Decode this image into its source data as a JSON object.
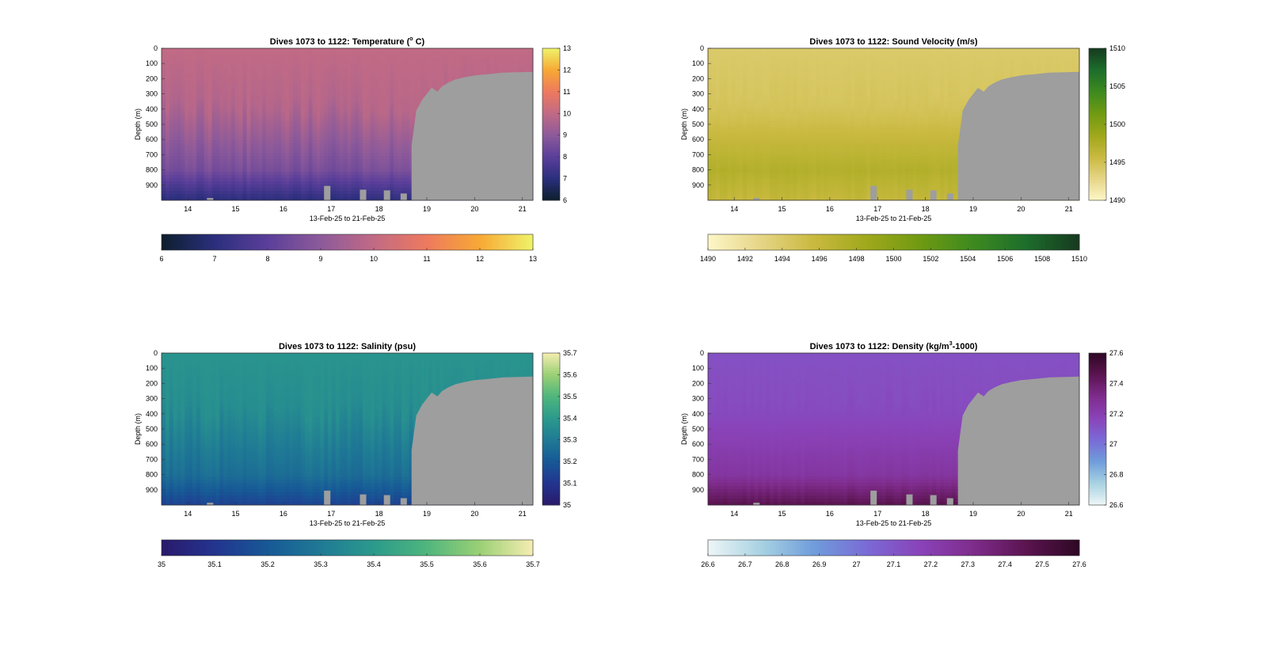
{
  "x_ticks": [
    "14",
    "15",
    "16",
    "17",
    "18",
    "19",
    "20",
    "21"
  ],
  "x_range": [
    13.45,
    21.22
  ],
  "depth_ticks": [
    "0",
    "100",
    "200",
    "300",
    "400",
    "500",
    "600",
    "700",
    "800",
    "900"
  ],
  "depth_range": [
    0,
    1000
  ],
  "xlabel": "13-Feb-25 to 21-Feb-25",
  "ylabel": "Depth (m)",
  "no_data_color": "#9e9e9e",
  "chart_data": [
    {
      "type": "heatmap",
      "title_text": "Dives 1073 to 1122: Temperature (",
      "title_sup": "o",
      "title_after": " C)",
      "variable": "temperature",
      "clim": [
        6,
        13
      ],
      "surface": 10.0,
      "deep": 8.0,
      "bottom": 7.0,
      "colormap": [
        "#0d1f2d",
        "#2b2f7d",
        "#5b3f9a",
        "#8d5a9a",
        "#c16a85",
        "#ee7a5e",
        "#f7a935",
        "#eff36a"
      ],
      "colorbar_ticks": [
        "6",
        "7",
        "8",
        "9",
        "10",
        "11",
        "12",
        "13"
      ],
      "hcolorbar_ticks": [
        "6",
        "7",
        "8",
        "9",
        "10",
        "11",
        "12",
        "13"
      ]
    },
    {
      "type": "heatmap",
      "title_text": "Dives 1073 to 1122: Sound Velocity (m/s)",
      "title_sup": "",
      "title_after": "",
      "variable": "sound_velocity",
      "clim": [
        1490,
        1510
      ],
      "surface": 1494.0,
      "deep": 1498.5,
      "bottom": 1496.0,
      "colormap": [
        "#fdf7c8",
        "#e6d586",
        "#c9b93f",
        "#9fa81b",
        "#6f9a12",
        "#3d8a1f",
        "#1d6d2c",
        "#163a1f"
      ],
      "colorbar_ticks": [
        "1490",
        "1495",
        "1500",
        "1505",
        "1510"
      ],
      "hcolorbar_ticks": [
        "1490",
        "1492",
        "1494",
        "1496",
        "1498",
        "1500",
        "1502",
        "1504",
        "1506",
        "1508",
        "1510"
      ]
    },
    {
      "type": "heatmap",
      "title_text": "Dives 1073 to 1122: Salinity (psu)",
      "title_sup": "",
      "title_after": "",
      "variable": "salinity",
      "clim": [
        35,
        35.7
      ],
      "surface": 35.38,
      "deep": 35.22,
      "bottom": 35.14,
      "colormap": [
        "#2a1a6b",
        "#23348f",
        "#175996",
        "#1f7a95",
        "#2c9a8c",
        "#4fb67d",
        "#9bd075",
        "#f6edb2"
      ],
      "colorbar_ticks": [
        "35",
        "35.1",
        "35.2",
        "35.3",
        "35.4",
        "35.5",
        "35.6",
        "35.7"
      ],
      "hcolorbar_ticks": [
        "35",
        "35.1",
        "35.2",
        "35.3",
        "35.4",
        "35.5",
        "35.6",
        "35.7"
      ]
    },
    {
      "type": "heatmap",
      "title_text": "Dives 1073 to 1122: Density (kg/m",
      "title_sup": "3",
      "title_after": "-1000)",
      "variable": "density",
      "clim": [
        26.6,
        27.6
      ],
      "surface": 27.12,
      "deep": 27.3,
      "bottom": 27.46,
      "colormap": [
        "#eef6f7",
        "#a8d2e2",
        "#6f9ddb",
        "#7a6ad6",
        "#8a43b9",
        "#7f2c8c",
        "#5b1450",
        "#2e0824"
      ],
      "colorbar_ticks": [
        "26.6",
        "26.8",
        "27",
        "27.2",
        "27.4",
        "27.6"
      ],
      "hcolorbar_ticks": [
        "26.6",
        "26.7",
        "26.8",
        "26.9",
        "27",
        "27.1",
        "27.2",
        "27.3",
        "27.4",
        "27.5",
        "27.6"
      ]
    }
  ]
}
